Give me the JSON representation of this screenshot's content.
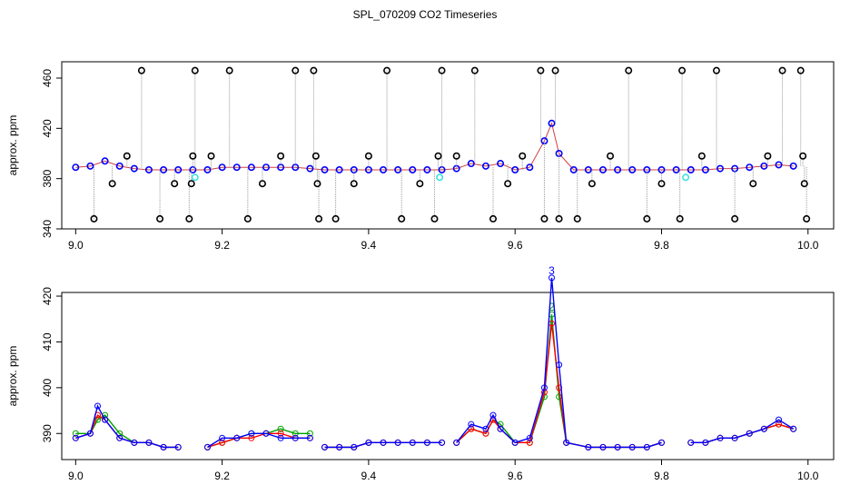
{
  "chart_data": [
    {
      "type": "scatter",
      "title": "SPL_070209  CO2 Timeseries",
      "ylabel": "approx. ppm",
      "xlim": [
        8.981,
        10.035
      ],
      "ylim": [
        340,
        473
      ],
      "xticks": [
        {
          "value": 9,
          "label": "9.0"
        },
        {
          "value": 9.2,
          "label": "9.2"
        },
        {
          "value": 9.4,
          "label": "9.4"
        },
        {
          "value": 9.6,
          "label": "9.6"
        },
        {
          "value": 9.8,
          "label": "9.8"
        },
        {
          "value": 10,
          "label": "10.0"
        }
      ],
      "yticks": [
        340,
        380,
        420,
        460
      ],
      "series": [
        {
          "color": "#0000ff",
          "x": [
            9.0,
            9.02,
            9.04,
            9.06,
            9.08,
            9.1,
            9.12,
            9.14,
            9.16,
            9.18,
            9.2,
            9.22,
            9.24,
            9.26,
            9.28,
            9.3,
            9.32,
            9.34,
            9.36,
            9.38,
            9.4,
            9.42,
            9.44,
            9.46,
            9.48,
            9.5,
            9.52,
            9.54,
            9.56,
            9.58,
            9.6,
            9.62,
            9.64,
            9.65,
            9.66,
            9.68,
            9.7,
            9.72,
            9.74,
            9.76,
            9.78,
            9.8,
            9.82,
            9.84,
            9.86,
            9.88,
            9.9,
            9.92,
            9.94,
            9.96,
            9.98
          ],
          "values": [
            389,
            390,
            394,
            390,
            388,
            387,
            387,
            387,
            387,
            387,
            389,
            389,
            389,
            389,
            389,
            389,
            388,
            387,
            387,
            387,
            387,
            387,
            387,
            387,
            387,
            387,
            388,
            392,
            390,
            392,
            387,
            389,
            410,
            424,
            400,
            387,
            387,
            387,
            387,
            387,
            387,
            387,
            387,
            387,
            387,
            388,
            388,
            389,
            390,
            391,
            390
          ]
        },
        {
          "color": "#000000",
          "x": [
            9.025,
            9.05,
            9.07,
            9.09,
            9.115,
            9.135,
            9.155,
            9.158,
            9.16,
            9.163,
            9.185,
            9.21,
            9.235,
            9.255,
            9.28,
            9.3,
            9.325,
            9.328,
            9.33,
            9.332,
            9.355,
            9.38,
            9.4,
            9.425,
            9.445,
            9.47,
            9.49,
            9.495,
            9.5,
            9.52,
            9.545,
            9.57,
            9.59,
            9.61,
            9.635,
            9.64,
            9.655,
            9.66,
            9.685,
            9.705,
            9.73,
            9.755,
            9.78,
            9.8,
            9.825,
            9.828,
            9.855,
            9.875,
            9.9,
            9.925,
            9.945,
            9.965,
            9.99,
            9.993,
            9.995,
            9.998
          ],
          "values": [
            348,
            376,
            398,
            466,
            348,
            376,
            348,
            376,
            398,
            466,
            398,
            466,
            348,
            376,
            398,
            466,
            466,
            398,
            376,
            348,
            348,
            376,
            398,
            466,
            348,
            376,
            348,
            398,
            466,
            398,
            466,
            348,
            376,
            398,
            466,
            348,
            466,
            348,
            348,
            376,
            398,
            466,
            348,
            376,
            348,
            466,
            398,
            466,
            348,
            376,
            398,
            466,
            466,
            398,
            376,
            348
          ]
        },
        {
          "color": "#40e0e0",
          "x": [
            9.163,
            9.497,
            9.833
          ],
          "values": [
            381,
            381,
            381
          ]
        }
      ]
    },
    {
      "type": "line",
      "ylabel": "approx. ppm",
      "xlim": [
        8.981,
        10.035
      ],
      "ylim": [
        384.3,
        420.8
      ],
      "xticks": [
        {
          "value": 9,
          "label": "9.0"
        },
        {
          "value": 9.2,
          "label": "9.2"
        },
        {
          "value": 9.4,
          "label": "9.4"
        },
        {
          "value": 9.6,
          "label": "9.6"
        },
        {
          "value": 9.8,
          "label": "9.8"
        },
        {
          "value": 10,
          "label": "10.0"
        }
      ],
      "yticks": [
        390,
        400,
        410,
        420
      ],
      "x": [
        9.0,
        9.02,
        9.03,
        9.04,
        9.06,
        9.08,
        9.1,
        9.12,
        9.14,
        9.16,
        9.18,
        9.2,
        9.22,
        9.24,
        9.26,
        9.28,
        9.3,
        9.32,
        9.33,
        9.34,
        9.36,
        9.38,
        9.4,
        9.42,
        9.44,
        9.46,
        9.48,
        9.5,
        9.51,
        9.52,
        9.54,
        9.56,
        9.57,
        9.58,
        9.6,
        9.62,
        9.64,
        9.65,
        9.66,
        9.67,
        9.7,
        9.72,
        9.74,
        9.76,
        9.78,
        9.8,
        9.82,
        9.84,
        9.86,
        9.88,
        9.9,
        9.92,
        9.94,
        9.96,
        9.98
      ],
      "series": [
        {
          "color": "#00a000",
          "marker": "2",
          "values": [
            390,
            390,
            393,
            394,
            390,
            388,
            388,
            387,
            387,
            null,
            387,
            388,
            389,
            390,
            390,
            391,
            390,
            390,
            null,
            387,
            387,
            387,
            388,
            388,
            388,
            388,
            388,
            388,
            null,
            388,
            391,
            390,
            393,
            392,
            388,
            388,
            398,
            416,
            398,
            388,
            387,
            387,
            387,
            387,
            387,
            388,
            null,
            388,
            388,
            389,
            389,
            390,
            391,
            392,
            391
          ]
        },
        {
          "color": "#ff0000",
          "values": [
            389,
            390,
            394,
            393,
            389,
            388,
            388,
            387,
            387,
            null,
            387,
            388,
            389,
            389,
            390,
            390,
            389,
            389,
            null,
            387,
            387,
            387,
            388,
            388,
            388,
            388,
            388,
            388,
            null,
            388,
            391,
            390,
            393,
            391,
            388,
            388,
            399,
            414,
            400,
            388,
            387,
            387,
            387,
            387,
            387,
            388,
            null,
            388,
            388,
            389,
            389,
            390,
            391,
            392,
            391
          ]
        },
        {
          "color": "#0000ff",
          "marker": "3",
          "values": [
            389,
            390,
            396,
            393,
            389,
            388,
            388,
            387,
            387,
            null,
            387,
            389,
            389,
            390,
            390,
            389,
            389,
            389,
            null,
            387,
            387,
            387,
            388,
            388,
            388,
            388,
            388,
            388,
            null,
            388,
            392,
            391,
            394,
            391,
            388,
            389,
            400,
            424,
            405,
            388,
            387,
            387,
            387,
            387,
            387,
            388,
            null,
            388,
            388,
            389,
            389,
            390,
            391,
            393,
            391
          ]
        }
      ]
    }
  ]
}
